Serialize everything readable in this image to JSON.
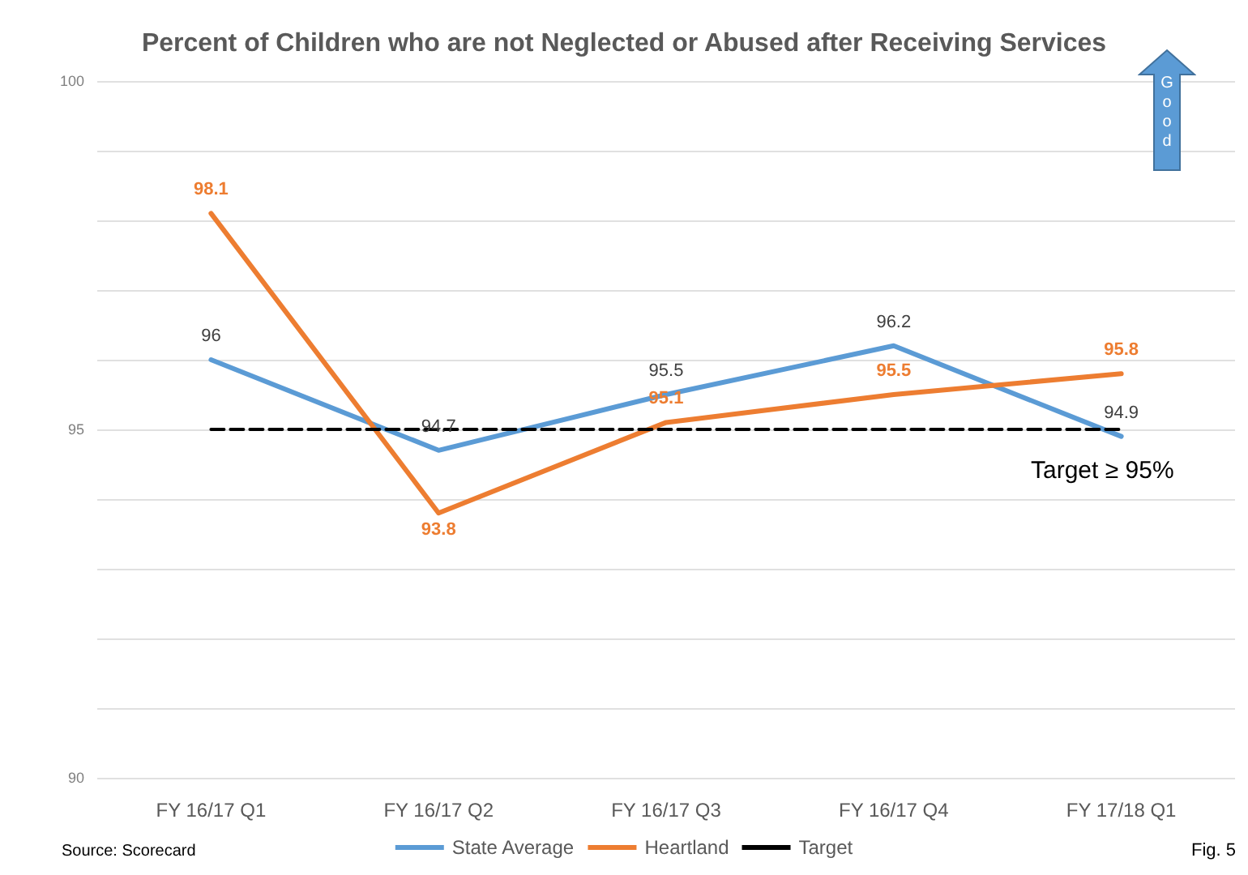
{
  "chart_data": {
    "type": "line",
    "title": "Percent of Children who are not Neglected or Abused after Receiving Services",
    "categories": [
      "FY 16/17 Q1",
      "FY 16/17 Q2",
      "FY 16/17 Q3",
      "FY 16/17 Q4",
      "FY 17/18 Q1"
    ],
    "series": [
      {
        "name": "State Average",
        "color": "#5b9bd5",
        "values": [
          96,
          94.7,
          95.5,
          96.2,
          94.9
        ],
        "value_labels": [
          "96",
          "94.7",
          "95.5",
          "96.2",
          "94.9"
        ]
      },
      {
        "name": "Heartland",
        "color": "#ed7d31",
        "values": [
          98.1,
          93.8,
          95.1,
          95.5,
          95.8
        ],
        "value_labels": [
          "98.1",
          "93.8",
          "95.1",
          "95.5",
          "95.8"
        ]
      },
      {
        "name": "Target",
        "color": "#000000",
        "values": [
          95,
          95,
          95,
          95,
          95
        ],
        "line_style": "dashed"
      }
    ],
    "ylim": [
      90,
      100
    ],
    "yticks": [
      90,
      {
        "value": 91,
        "label": null
      },
      {
        "value": 92,
        "label": null
      },
      {
        "value": 93,
        "label": null
      },
      {
        "value": 94,
        "label": null
      },
      95,
      {
        "value": 96,
        "label": null
      },
      {
        "value": 97,
        "label": null
      },
      {
        "value": 98,
        "label": null
      },
      {
        "value": 99,
        "label": null
      },
      100
    ],
    "grid": "y",
    "legend": "bottom",
    "marker": "none",
    "line_style": "solid",
    "annotations": [
      "Target ≥ 95%",
      "Source: Scorecard",
      "Fig. 5",
      "Good"
    ]
  }
}
